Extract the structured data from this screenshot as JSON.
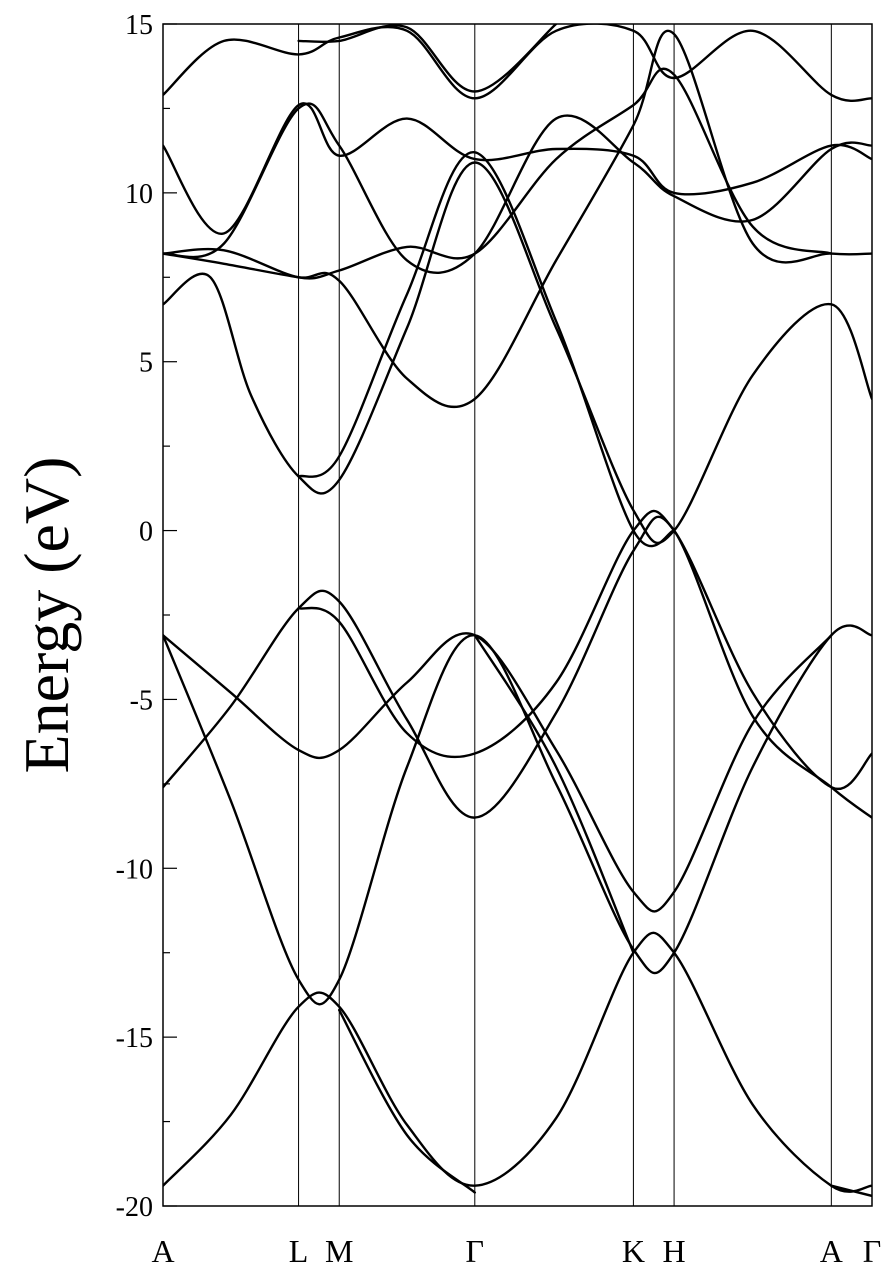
{
  "chart_data": {
    "type": "line",
    "ylabel": "Energy (eV)",
    "xlabel": "",
    "ylim": [
      -20,
      15
    ],
    "y_major_ticks": [
      -20,
      -15,
      -10,
      -5,
      0,
      5,
      10,
      15
    ],
    "y_tick_labels": [
      "-20",
      "-15",
      "-10",
      "-5",
      "0",
      "5",
      "10",
      "15"
    ],
    "y_minor_ticks": [
      -17.5,
      -12.5,
      -7.5,
      -2.5,
      2.5,
      7.5,
      12.5
    ],
    "grid": false,
    "legend": "none",
    "k_points": [
      {
        "label": "A",
        "x": 0
      },
      {
        "label": "L",
        "x": 1.0
      },
      {
        "label": "M",
        "x": 1.3
      },
      {
        "label": "Γ",
        "x": 2.3
      },
      {
        "label": "K",
        "x": 3.47
      },
      {
        "label": "H",
        "x": 3.77
      },
      {
        "label": "A",
        "x": 4.93
      },
      {
        "label": "Γ",
        "x": 5.23
      }
    ],
    "xlim": [
      0,
      5.23
    ],
    "series": [
      {
        "values": [
          [
            0,
            -19.4
          ],
          [
            0.5,
            -17.3
          ],
          [
            1.0,
            -14.1
          ],
          [
            1.3,
            -14.1
          ],
          [
            1.8,
            -17.6
          ],
          [
            2.3,
            -19.4
          ],
          [
            2.9,
            -17.4
          ],
          [
            3.47,
            -12.5
          ],
          [
            3.77,
            -12.5
          ],
          [
            4.35,
            -17.0
          ],
          [
            4.93,
            -19.4
          ],
          [
            5.23,
            -19.4
          ]
        ]
      },
      {
        "values": [
          [
            2.3,
            -19.6
          ],
          [
            1.8,
            -17.9
          ],
          [
            1.3,
            -14.2
          ]
        ]
      },
      {
        "values": [
          [
            4.93,
            -19.4
          ],
          [
            5.23,
            -19.7
          ]
        ]
      },
      {
        "values": [
          [
            0,
            -3.1
          ],
          [
            0.5,
            -8.0
          ],
          [
            1.0,
            -13.3
          ],
          [
            1.3,
            -13.3
          ],
          [
            1.8,
            -7.0
          ],
          [
            2.3,
            -3.1
          ],
          [
            2.9,
            -7.5
          ],
          [
            3.47,
            -12.4
          ],
          [
            3.77,
            -12.5
          ],
          [
            4.35,
            -7.0
          ],
          [
            4.93,
            -3.1
          ],
          [
            5.23,
            -3.1
          ]
        ]
      },
      {
        "values": [
          [
            0,
            -3.1
          ],
          [
            0.5,
            -4.8
          ],
          [
            1.0,
            -6.5
          ],
          [
            1.3,
            -6.5
          ],
          [
            1.8,
            -4.5
          ],
          [
            2.3,
            -3.1
          ],
          [
            2.9,
            -6.5
          ],
          [
            3.47,
            -10.7
          ],
          [
            3.77,
            -10.7
          ],
          [
            4.35,
            -5.7
          ],
          [
            4.93,
            -3.1
          ]
        ]
      },
      {
        "values": [
          [
            2.3,
            -3.1
          ],
          [
            2.9,
            -7.0
          ],
          [
            3.47,
            -12.5
          ]
        ]
      },
      {
        "values": [
          [
            0,
            -7.6
          ],
          [
            0.5,
            -5.2
          ],
          [
            1.0,
            -2.3
          ],
          [
            1.3,
            -2.1
          ],
          [
            1.8,
            -5.6
          ],
          [
            2.3,
            -8.5
          ],
          [
            2.9,
            -5.4
          ],
          [
            3.47,
            -0.6
          ],
          [
            3.77,
            0
          ],
          [
            4.35,
            -5.5
          ],
          [
            4.93,
            -7.6
          ],
          [
            5.23,
            -8.5
          ]
        ]
      },
      {
        "values": [
          [
            1.0,
            -2.3
          ],
          [
            1.3,
            -2.7
          ],
          [
            1.8,
            -6.0
          ],
          [
            2.3,
            -6.6
          ],
          [
            2.9,
            -4.5
          ],
          [
            3.47,
            0
          ],
          [
            3.77,
            0
          ],
          [
            4.35,
            -4.8
          ],
          [
            4.93,
            -7.6
          ],
          [
            5.23,
            -6.6
          ]
        ]
      },
      {
        "values": [
          [
            0,
            6.7
          ],
          [
            0.35,
            7.5
          ],
          [
            0.65,
            4.0
          ],
          [
            1.0,
            1.6
          ],
          [
            1.3,
            1.5
          ],
          [
            1.8,
            6.0
          ],
          [
            2.3,
            10.9
          ],
          [
            2.9,
            6.0
          ],
          [
            3.47,
            0.6
          ],
          [
            3.77,
            0
          ],
          [
            4.35,
            4.6
          ],
          [
            4.93,
            6.7
          ],
          [
            5.23,
            3.9
          ]
        ]
      },
      {
        "values": [
          [
            1.0,
            1.6
          ],
          [
            1.3,
            2.2
          ],
          [
            1.8,
            7.0
          ],
          [
            2.3,
            11.2
          ],
          [
            2.9,
            6.2
          ],
          [
            3.47,
            0
          ],
          [
            3.77,
            0
          ]
        ]
      },
      {
        "values": [
          [
            0,
            8.2
          ],
          [
            0.45,
            7.9
          ],
          [
            1.0,
            7.5
          ],
          [
            1.3,
            7.4
          ],
          [
            1.8,
            4.5
          ],
          [
            2.3,
            3.9
          ],
          [
            2.9,
            8.0
          ],
          [
            3.47,
            12.0
          ],
          [
            3.77,
            14.7
          ],
          [
            4.35,
            8.5
          ],
          [
            4.93,
            8.2
          ],
          [
            5.23,
            8.2
          ]
        ]
      },
      {
        "values": [
          [
            0,
            8.2
          ],
          [
            0.45,
            8.3
          ],
          [
            1.0,
            7.5
          ],
          [
            1.3,
            7.7
          ],
          [
            1.8,
            8.4
          ],
          [
            2.3,
            8.2
          ],
          [
            2.9,
            11.0
          ],
          [
            3.47,
            12.6
          ],
          [
            3.77,
            13.5
          ],
          [
            4.35,
            9.0
          ],
          [
            4.93,
            8.2
          ]
        ]
      },
      {
        "values": [
          [
            0,
            8.2
          ],
          [
            0.45,
            8.5
          ],
          [
            1.0,
            12.5
          ],
          [
            1.3,
            11.4
          ],
          [
            1.8,
            8.0
          ],
          [
            2.3,
            8.2
          ],
          [
            2.9,
            12.2
          ],
          [
            3.47,
            10.9
          ],
          [
            3.77,
            9.9
          ],
          [
            4.35,
            9.2
          ],
          [
            4.93,
            11.3
          ],
          [
            5.23,
            11.4
          ]
        ]
      },
      {
        "values": [
          [
            0,
            11.4
          ],
          [
            0.45,
            8.8
          ],
          [
            1.0,
            12.6
          ],
          [
            1.3,
            11.1
          ],
          [
            1.8,
            12.2
          ],
          [
            2.3,
            11.0
          ],
          [
            2.9,
            11.3
          ],
          [
            3.47,
            11.1
          ],
          [
            3.77,
            10.0
          ],
          [
            4.35,
            10.3
          ],
          [
            4.93,
            11.4
          ],
          [
            5.23,
            11.0
          ]
        ]
      },
      {
        "values": [
          [
            0,
            12.9
          ],
          [
            0.45,
            14.5
          ],
          [
            1.0,
            14.1
          ],
          [
            1.3,
            14.6
          ],
          [
            1.8,
            14.8
          ],
          [
            2.3,
            12.8
          ],
          [
            2.9,
            14.8
          ],
          [
            3.47,
            14.8
          ],
          [
            3.77,
            13.4
          ],
          [
            4.35,
            14.8
          ],
          [
            4.93,
            12.9
          ],
          [
            5.23,
            12.8
          ]
        ]
      },
      {
        "values": [
          [
            1.0,
            14.5
          ],
          [
            1.3,
            14.5
          ],
          [
            1.8,
            14.9
          ],
          [
            2.3,
            13.0
          ],
          [
            2.9,
            15.0
          ]
        ]
      }
    ]
  }
}
